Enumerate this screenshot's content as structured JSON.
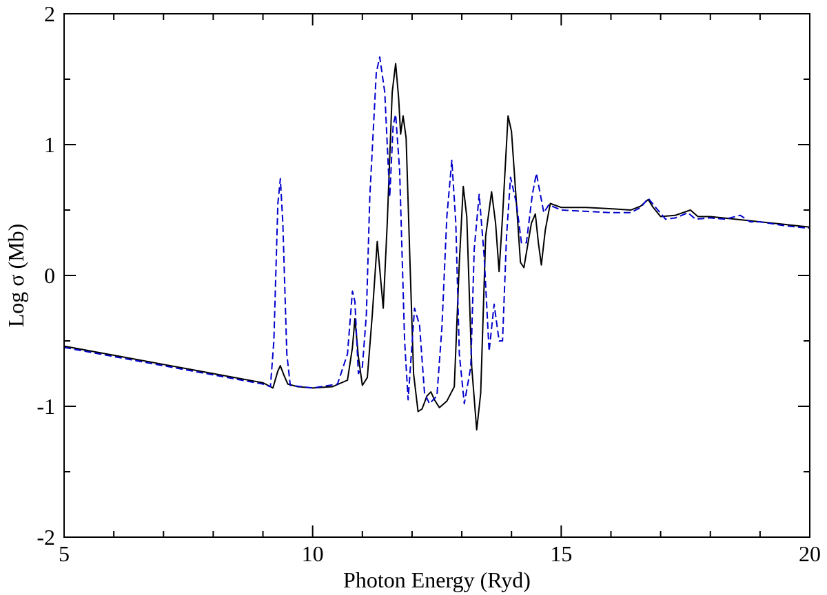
{
  "chart_data": {
    "type": "line",
    "title": "",
    "xlabel": "Photon Energy (Ryd)",
    "ylabel": "Log σ (Mb)",
    "xlim": [
      5,
      20
    ],
    "ylim": [
      -2,
      2
    ],
    "x_ticks": [
      "5",
      "10",
      "15",
      "20"
    ],
    "y_ticks": [
      "-2",
      "-1",
      "0",
      "1",
      "2"
    ],
    "x_minor_step": 1,
    "y_minor_step": 0.5,
    "grid": false,
    "legend": "none",
    "series": [
      {
        "color": "#000000",
        "dash": "solid",
        "points": [
          [
            5.0,
            -0.54
          ],
          [
            6.0,
            -0.61
          ],
          [
            7.0,
            -0.68
          ],
          [
            8.0,
            -0.75
          ],
          [
            9.0,
            -0.82
          ],
          [
            9.2,
            -0.86
          ],
          [
            9.3,
            -0.73
          ],
          [
            9.35,
            -0.69
          ],
          [
            9.42,
            -0.76
          ],
          [
            9.5,
            -0.83
          ],
          [
            9.7,
            -0.85
          ],
          [
            10.0,
            -0.86
          ],
          [
            10.4,
            -0.85
          ],
          [
            10.7,
            -0.8
          ],
          [
            10.8,
            -0.55
          ],
          [
            10.85,
            -0.33
          ],
          [
            10.92,
            -0.62
          ],
          [
            11.0,
            -0.84
          ],
          [
            11.1,
            -0.78
          ],
          [
            11.2,
            -0.3
          ],
          [
            11.3,
            0.26
          ],
          [
            11.35,
            0.05
          ],
          [
            11.42,
            -0.25
          ],
          [
            11.5,
            0.4
          ],
          [
            11.6,
            1.4
          ],
          [
            11.67,
            1.62
          ],
          [
            11.73,
            1.35
          ],
          [
            11.77,
            1.08
          ],
          [
            11.82,
            1.22
          ],
          [
            11.88,
            1.05
          ],
          [
            11.95,
            0.2
          ],
          [
            12.03,
            -0.75
          ],
          [
            12.12,
            -1.04
          ],
          [
            12.2,
            -1.02
          ],
          [
            12.3,
            -0.92
          ],
          [
            12.38,
            -0.89
          ],
          [
            12.45,
            -0.95
          ],
          [
            12.55,
            -1.01
          ],
          [
            12.7,
            -0.96
          ],
          [
            12.85,
            -0.85
          ],
          [
            12.95,
            0.1
          ],
          [
            13.03,
            0.68
          ],
          [
            13.1,
            0.45
          ],
          [
            13.2,
            -0.7
          ],
          [
            13.3,
            -1.18
          ],
          [
            13.38,
            -0.9
          ],
          [
            13.48,
            0.3
          ],
          [
            13.6,
            0.64
          ],
          [
            13.68,
            0.4
          ],
          [
            13.75,
            0.03
          ],
          [
            13.82,
            0.45
          ],
          [
            13.93,
            1.22
          ],
          [
            14.0,
            1.1
          ],
          [
            14.1,
            0.55
          ],
          [
            14.18,
            0.1
          ],
          [
            14.25,
            0.06
          ],
          [
            14.32,
            0.22
          ],
          [
            14.4,
            0.4
          ],
          [
            14.48,
            0.47
          ],
          [
            14.54,
            0.25
          ],
          [
            14.6,
            0.08
          ],
          [
            14.68,
            0.35
          ],
          [
            14.78,
            0.55
          ],
          [
            15.0,
            0.52
          ],
          [
            15.5,
            0.52
          ],
          [
            16.0,
            0.51
          ],
          [
            16.4,
            0.5
          ],
          [
            16.6,
            0.53
          ],
          [
            16.75,
            0.58
          ],
          [
            16.85,
            0.52
          ],
          [
            17.0,
            0.45
          ],
          [
            17.3,
            0.46
          ],
          [
            17.6,
            0.5
          ],
          [
            17.75,
            0.45
          ],
          [
            18.0,
            0.45
          ],
          [
            18.5,
            0.43
          ],
          [
            19.0,
            0.41
          ],
          [
            19.5,
            0.39
          ],
          [
            20.0,
            0.37
          ]
        ]
      },
      {
        "color": "#0000cc",
        "dash": "dashed",
        "points": [
          [
            5.0,
            -0.55
          ],
          [
            6.0,
            -0.62
          ],
          [
            7.0,
            -0.69
          ],
          [
            8.0,
            -0.76
          ],
          [
            9.0,
            -0.83
          ],
          [
            9.15,
            -0.85
          ],
          [
            9.22,
            -0.5
          ],
          [
            9.3,
            0.55
          ],
          [
            9.35,
            0.74
          ],
          [
            9.4,
            0.4
          ],
          [
            9.48,
            -0.6
          ],
          [
            9.55,
            -0.84
          ],
          [
            10.0,
            -0.86
          ],
          [
            10.5,
            -0.83
          ],
          [
            10.7,
            -0.6
          ],
          [
            10.8,
            -0.12
          ],
          [
            10.85,
            -0.2
          ],
          [
            10.92,
            -0.75
          ],
          [
            11.0,
            -0.7
          ],
          [
            11.08,
            -0.3
          ],
          [
            11.15,
            0.6
          ],
          [
            11.28,
            1.55
          ],
          [
            11.35,
            1.67
          ],
          [
            11.45,
            1.4
          ],
          [
            11.55,
            0.6
          ],
          [
            11.62,
            1.15
          ],
          [
            11.67,
            1.23
          ],
          [
            11.75,
            0.8
          ],
          [
            11.85,
            -0.5
          ],
          [
            11.92,
            -0.95
          ],
          [
            12.05,
            -0.25
          ],
          [
            12.15,
            -0.38
          ],
          [
            12.25,
            -0.9
          ],
          [
            12.35,
            -0.98
          ],
          [
            12.5,
            -0.92
          ],
          [
            12.6,
            -0.4
          ],
          [
            12.7,
            0.45
          ],
          [
            12.8,
            0.88
          ],
          [
            12.88,
            0.4
          ],
          [
            12.95,
            -0.6
          ],
          [
            13.05,
            -0.98
          ],
          [
            13.18,
            -0.7
          ],
          [
            13.25,
            0.2
          ],
          [
            13.35,
            0.62
          ],
          [
            13.45,
            0.15
          ],
          [
            13.55,
            -0.58
          ],
          [
            13.65,
            -0.22
          ],
          [
            13.75,
            -0.5
          ],
          [
            13.82,
            -0.5
          ],
          [
            13.9,
            0.3
          ],
          [
            13.98,
            0.75
          ],
          [
            14.1,
            0.55
          ],
          [
            14.2,
            0.25
          ],
          [
            14.3,
            0.25
          ],
          [
            14.42,
            0.62
          ],
          [
            14.5,
            0.78
          ],
          [
            14.58,
            0.62
          ],
          [
            14.65,
            0.48
          ],
          [
            14.75,
            0.54
          ],
          [
            15.0,
            0.5
          ],
          [
            15.5,
            0.49
          ],
          [
            16.0,
            0.48
          ],
          [
            16.4,
            0.48
          ],
          [
            16.6,
            0.52
          ],
          [
            16.75,
            0.59
          ],
          [
            16.9,
            0.52
          ],
          [
            17.1,
            0.43
          ],
          [
            17.3,
            0.44
          ],
          [
            17.55,
            0.48
          ],
          [
            17.7,
            0.43
          ],
          [
            18.0,
            0.44
          ],
          [
            18.3,
            0.43
          ],
          [
            18.6,
            0.46
          ],
          [
            18.8,
            0.41
          ],
          [
            19.0,
            0.41
          ],
          [
            19.5,
            0.38
          ],
          [
            20.0,
            0.36
          ]
        ]
      }
    ]
  }
}
